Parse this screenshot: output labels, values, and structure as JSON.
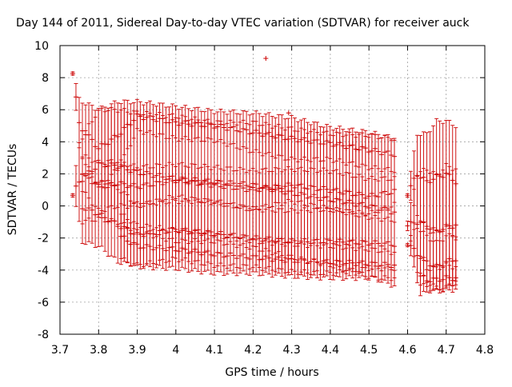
{
  "chart_data": {
    "type": "scatter",
    "title": "Day 144 of 2011, Sidereal Day-to-day VTEC variation (SDTVAR) for receiver auck",
    "xlabel": "GPS time / hours",
    "ylabel": "SDTVAR / TECUs",
    "xlim": [
      3.7,
      4.8
    ],
    "ylim": [
      -8,
      10
    ],
    "grid": true,
    "marker": "+",
    "x_ticks": [
      "3.7",
      "3.8",
      "3.9",
      "4",
      "4.1",
      "4.2",
      "4.3",
      "4.4",
      "4.5",
      "4.6",
      "4.7",
      "4.8"
    ],
    "y_ticks": [
      "-8",
      "-6",
      "-4",
      "-2",
      "0",
      "2",
      "4",
      "6",
      "8",
      "10"
    ],
    "segments": [
      {
        "x_start": 3.733,
        "x_end": 4.567,
        "step": 0.00833,
        "series": [
          {
            "name": "upper",
            "values": [
              {
                "x": 3.733,
                "y": 8.4,
                "err": 0.1
              },
              {
                "x": 3.75,
                "y": 5.0,
                "err": 1.6
              },
              {
                "x": 3.8,
                "y": 3.6,
                "err": 2.4
              },
              {
                "x": 3.85,
                "y": 4.4,
                "err": 2.1
              },
              {
                "x": 3.9,
                "y": 5.6,
                "err": 0.9
              },
              {
                "x": 4.0,
                "y": 5.2,
                "err": 1.0
              },
              {
                "x": 4.1,
                "y": 5.0,
                "err": 0.9
              },
              {
                "x": 4.2,
                "y": 4.6,
                "err": 1.2
              },
              {
                "x": 4.3,
                "y": 4.2,
                "err": 1.3
              },
              {
                "x": 4.4,
                "y": 3.9,
                "err": 1.0
              },
              {
                "x": 4.5,
                "y": 3.5,
                "err": 1.1
              },
              {
                "x": 4.567,
                "y": 3.2,
                "err": 1.0
              }
            ]
          },
          {
            "name": "middle",
            "values": [
              {
                "x": 3.733,
                "y": 0.7,
                "err": 0.1
              },
              {
                "x": 3.75,
                "y": 1.5,
                "err": 2.5
              },
              {
                "x": 3.8,
                "y": 2.6,
                "err": 3.4
              },
              {
                "x": 3.85,
                "y": 2.5,
                "err": 3.5
              },
              {
                "x": 3.9,
                "y": 2.1,
                "err": 3.7
              },
              {
                "x": 4.0,
                "y": 1.7,
                "err": 3.9
              },
              {
                "x": 4.1,
                "y": 1.5,
                "err": 3.7
              },
              {
                "x": 4.2,
                "y": 1.3,
                "err": 3.9
              },
              {
                "x": 4.3,
                "y": 0.8,
                "err": 4.0
              },
              {
                "x": 4.4,
                "y": 0.4,
                "err": 4.1
              },
              {
                "x": 4.5,
                "y": 0.0,
                "err": 4.4
              },
              {
                "x": 4.567,
                "y": -0.4,
                "err": 4.6
              }
            ]
          },
          {
            "name": "middle2",
            "values": [
              {
                "x": 3.75,
                "y": 2.2,
                "err": 1.0
              },
              {
                "x": 3.8,
                "y": 1.2,
                "err": 1.5
              },
              {
                "x": 3.85,
                "y": 1.4,
                "err": 1.4
              },
              {
                "x": 3.9,
                "y": 1.2,
                "err": 1.2
              },
              {
                "x": 4.0,
                "y": 1.6,
                "err": 1.0
              },
              {
                "x": 4.1,
                "y": 1.3,
                "err": 1.1
              },
              {
                "x": 4.2,
                "y": 1.0,
                "err": 1.2
              },
              {
                "x": 4.3,
                "y": 1.3,
                "err": 1.0
              },
              {
                "x": 4.4,
                "y": 1.0,
                "err": 1.2
              },
              {
                "x": 4.5,
                "y": 0.6,
                "err": 1.1
              },
              {
                "x": 4.567,
                "y": 0.9,
                "err": 0.8
              }
            ]
          },
          {
            "name": "lower",
            "values": [
              {
                "x": 3.75,
                "y": 0.0,
                "err": 2.2
              },
              {
                "x": 3.8,
                "y": -0.5,
                "err": 2.0
              },
              {
                "x": 3.85,
                "y": -1.2,
                "err": 2.3
              },
              {
                "x": 3.9,
                "y": -1.8,
                "err": 1.9
              },
              {
                "x": 4.0,
                "y": -1.5,
                "err": 1.8
              },
              {
                "x": 4.1,
                "y": -1.7,
                "err": 2.0
              },
              {
                "x": 4.2,
                "y": -2.0,
                "err": 1.8
              },
              {
                "x": 4.3,
                "y": -2.2,
                "err": 1.9
              },
              {
                "x": 4.4,
                "y": -2.2,
                "err": 2.0
              },
              {
                "x": 4.5,
                "y": -2.3,
                "err": 1.6
              },
              {
                "x": 4.567,
                "y": -2.4,
                "err": 1.5
              }
            ]
          },
          {
            "name": "bottom",
            "values": [
              {
                "x": 3.85,
                "y": -1.8,
                "err": 1.4
              },
              {
                "x": 3.9,
                "y": -2.5,
                "err": 1.3
              },
              {
                "x": 4.0,
                "y": -2.7,
                "err": 1.2
              },
              {
                "x": 4.1,
                "y": -3.0,
                "err": 1.2
              },
              {
                "x": 4.2,
                "y": -3.2,
                "err": 1.0
              },
              {
                "x": 4.3,
                "y": -3.4,
                "err": 1.0
              },
              {
                "x": 4.4,
                "y": -3.5,
                "err": 1.0
              },
              {
                "x": 4.5,
                "y": -3.6,
                "err": 0.9
              },
              {
                "x": 4.567,
                "y": -3.7,
                "err": 0.8
              }
            ]
          }
        ]
      },
      {
        "x_start": 4.6,
        "x_end": 4.725,
        "step": 0.00833,
        "series": [
          {
            "name": "upper",
            "values": [
              {
                "x": 4.6,
                "y": 0.8,
                "err": 0.1
              },
              {
                "x": 4.625,
                "y": 2.0,
                "err": 2.5
              },
              {
                "x": 4.65,
                "y": 1.5,
                "err": 3.0
              },
              {
                "x": 4.675,
                "y": 1.8,
                "err": 3.5
              },
              {
                "x": 4.7,
                "y": 2.0,
                "err": 3.3
              },
              {
                "x": 4.725,
                "y": 1.5,
                "err": 3.5
              }
            ]
          },
          {
            "name": "middle",
            "values": [
              {
                "x": 4.6,
                "y": -1.2,
                "err": 0.3
              },
              {
                "x": 4.625,
                "y": -1.0,
                "err": 3.0
              },
              {
                "x": 4.65,
                "y": -1.2,
                "err": 3.5
              },
              {
                "x": 4.675,
                "y": -1.6,
                "err": 3.5
              },
              {
                "x": 4.7,
                "y": -1.3,
                "err": 3.8
              },
              {
                "x": 4.725,
                "y": -1.2,
                "err": 3.5
              }
            ]
          },
          {
            "name": "lower",
            "values": [
              {
                "x": 4.6,
                "y": -2.3,
                "err": 0.1
              },
              {
                "x": 4.625,
                "y": -3.0,
                "err": 1.7
              },
              {
                "x": 4.65,
                "y": -3.5,
                "err": 1.6
              },
              {
                "x": 4.675,
                "y": -3.8,
                "err": 1.5
              },
              {
                "x": 4.7,
                "y": -3.5,
                "err": 1.6
              },
              {
                "x": 4.725,
                "y": -3.3,
                "err": 1.5
              }
            ]
          },
          {
            "name": "bottom",
            "values": [
              {
                "x": 4.625,
                "y": -4.3,
                "err": 1.5
              },
              {
                "x": 4.65,
                "y": -4.6,
                "err": 0.7
              },
              {
                "x": 4.675,
                "y": -4.6,
                "err": 0.7
              },
              {
                "x": 4.7,
                "y": -4.5,
                "err": 0.8
              },
              {
                "x": 4.725,
                "y": -4.5,
                "err": 0.7
              }
            ]
          }
        ]
      }
    ],
    "outliers": [
      {
        "x": 4.233,
        "y": 9.2
      },
      {
        "x": 4.292,
        "y": 5.8
      }
    ],
    "colors": {
      "series": "#cc0000",
      "grid": "#a0a0a0",
      "axis": "#000000"
    }
  }
}
